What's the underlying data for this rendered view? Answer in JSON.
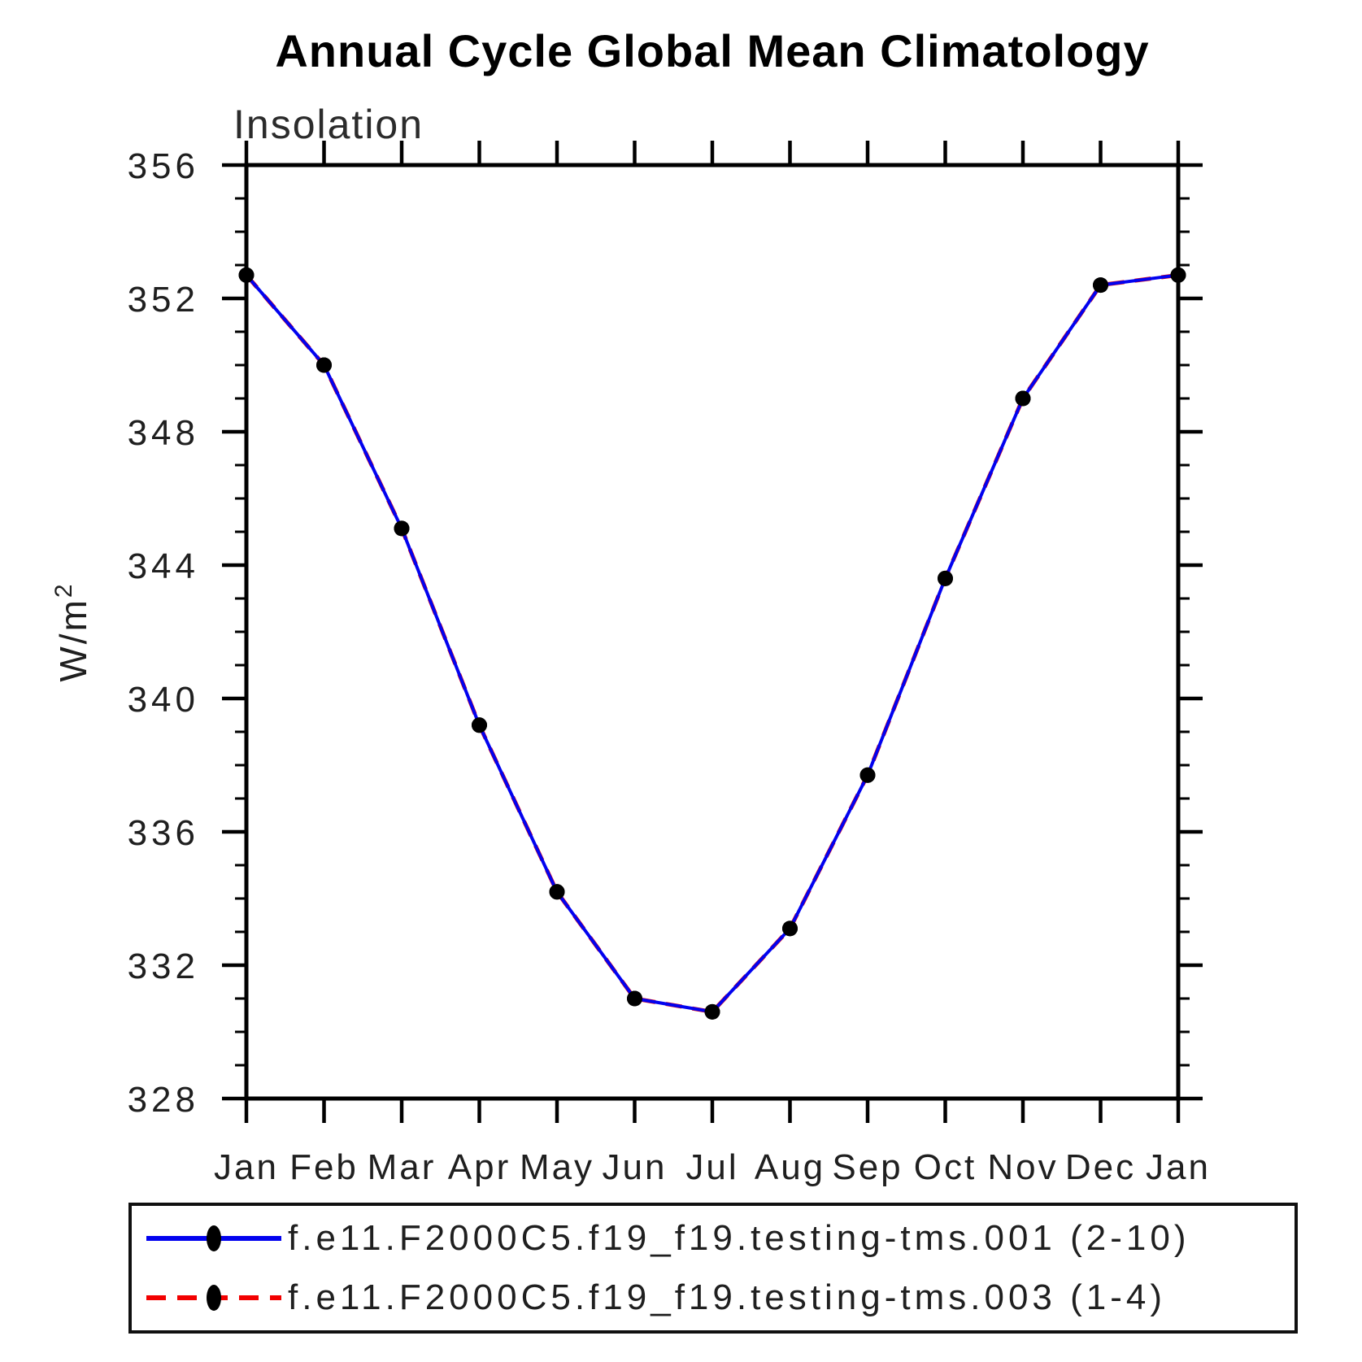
{
  "header": {
    "title": "Annual Cycle Global Mean Climatology"
  },
  "chart": {
    "ylabel_base": "W/m",
    "ylabel_sup": "2"
  },
  "chart_data": {
    "type": "line",
    "title": "Annual Cycle Global Mean Climatology",
    "subtitle": "Insolation",
    "ylabel": "W/m^2",
    "categories": [
      "Jan",
      "Feb",
      "Mar",
      "Apr",
      "May",
      "Jun",
      "Jul",
      "Aug",
      "Sep",
      "Oct",
      "Nov",
      "Dec",
      "Jan"
    ],
    "ylim": [
      328,
      356
    ],
    "y_major_ticks": [
      328,
      332,
      336,
      340,
      344,
      348,
      352,
      356
    ],
    "y_minor_step": 1,
    "grid": false,
    "legend_position": "bottom",
    "axis_color": "#000000",
    "series": [
      {
        "name": "f.e11.F2000C5.f19_f19.testing-tms.001 (2-10)",
        "color": "#0202ef",
        "style": "solid",
        "marker": "circle",
        "marker_color": "#000000",
        "values": [
          352.7,
          350.0,
          345.1,
          339.2,
          334.2,
          331.0,
          330.6,
          333.1,
          337.7,
          343.6,
          349.0,
          352.4,
          352.7
        ]
      },
      {
        "name": "f.e11.F2000C5.f19_f19.testing-tms.003 (1-4)",
        "color": "#f20000",
        "style": "dashed",
        "marker": "circle",
        "marker_color": "#000000",
        "values": [
          352.7,
          350.0,
          345.1,
          339.2,
          334.2,
          331.0,
          330.6,
          333.1,
          337.7,
          343.6,
          349.0,
          352.4,
          352.7
        ]
      }
    ]
  }
}
